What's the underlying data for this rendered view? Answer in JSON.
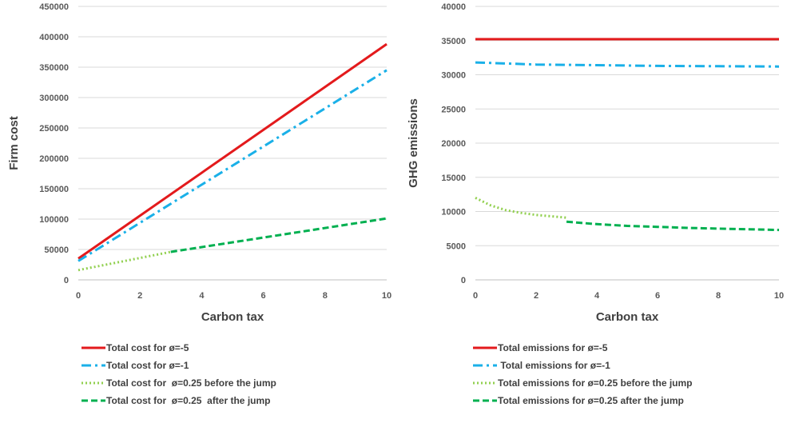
{
  "chart_data": [
    {
      "type": "line",
      "xlabel": "Carbon tax",
      "ylabel": "Firm cost",
      "xlim": [
        0,
        10
      ],
      "ylim": [
        0,
        450000
      ],
      "x_ticks": [
        0,
        2,
        4,
        6,
        8,
        10
      ],
      "y_ticks": [
        0,
        50000,
        100000,
        150000,
        200000,
        250000,
        300000,
        350000,
        400000,
        450000
      ],
      "grid": "horizontal",
      "legend_position": "bottom",
      "series": [
        {
          "name": "Total cost for ø=-5",
          "color": "#e31a1c",
          "style": "solid",
          "x": [
            0,
            10
          ],
          "y": [
            35000,
            388000
          ]
        },
        {
          "name": "Total cost for ø=-1",
          "color": "#1ab0e8",
          "style": "dash-dot",
          "x": [
            0,
            10
          ],
          "y": [
            31000,
            345000
          ]
        },
        {
          "name": "Total cost for  ø=0.25 before the jump",
          "color": "#92d050",
          "style": "dotted",
          "x": [
            0,
            3
          ],
          "y": [
            16000,
            46000
          ]
        },
        {
          "name": "Total cost for  ø=0.25  after the jump",
          "color": "#00b050",
          "style": "dashed",
          "x": [
            3,
            10
          ],
          "y": [
            46000,
            101000
          ]
        }
      ]
    },
    {
      "type": "line",
      "xlabel": "Carbon tax",
      "ylabel": "GHG emissions",
      "xlim": [
        0,
        10
      ],
      "ylim": [
        0,
        40000
      ],
      "x_ticks": [
        0,
        2,
        4,
        6,
        8,
        10
      ],
      "y_ticks": [
        0,
        5000,
        10000,
        15000,
        20000,
        25000,
        30000,
        35000,
        40000
      ],
      "grid": "horizontal",
      "legend_position": "bottom",
      "series": [
        {
          "name": "Total emissions for ø=-5",
          "color": "#e31a1c",
          "style": "solid",
          "x": [
            0,
            10
          ],
          "y": [
            35200,
            35200
          ]
        },
        {
          "name": " Total emissions for ø=-1",
          "color": "#1ab0e8",
          "style": "dash-dot",
          "x": [
            0,
            2,
            4,
            6,
            8,
            10
          ],
          "y": [
            31800,
            31500,
            31400,
            31300,
            31250,
            31200
          ]
        },
        {
          "name": "Total emissions for ø=0.25 before the jump",
          "color": "#92d050",
          "style": "dotted",
          "x": [
            0,
            0.5,
            1,
            1.5,
            2,
            2.5,
            3
          ],
          "y": [
            12000,
            10900,
            10200,
            9800,
            9500,
            9300,
            9100
          ]
        },
        {
          "name": "Total emissions for ø=0.25 after the jump",
          "color": "#00b050",
          "style": "dashed",
          "x": [
            3,
            4,
            5,
            6,
            7,
            8,
            9,
            10
          ],
          "y": [
            8500,
            8150,
            7900,
            7750,
            7600,
            7500,
            7400,
            7300
          ]
        }
      ]
    }
  ]
}
